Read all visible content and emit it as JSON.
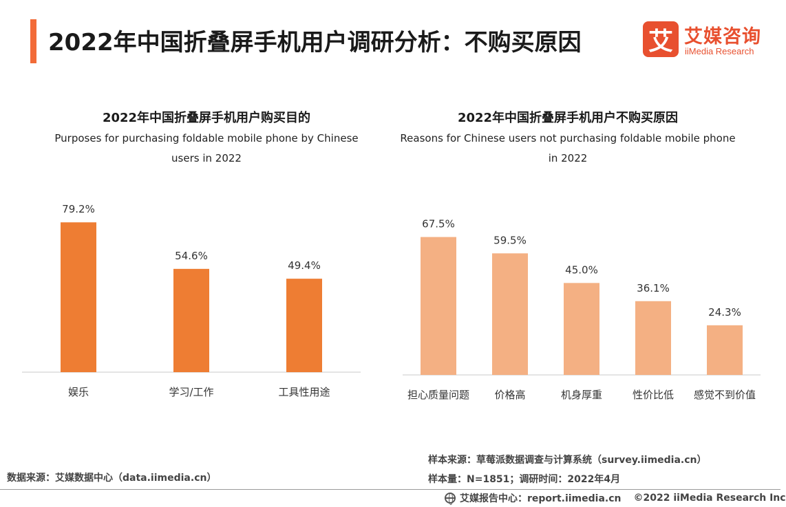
{
  "page": {
    "title": "2022年中国折叠屏手机用户调研分析：不购买原因",
    "accent_color": "#f26b38"
  },
  "logo": {
    "mark": "艾",
    "name_cn": "艾媒咨询",
    "name_en": "iiMedia Research",
    "color": "#e8502f"
  },
  "chart_data": [
    {
      "type": "bar",
      "title": "2022年中国折叠屏手机用户购买目的",
      "subtitle_lines": [
        "Purposes for purchasing foldable mobile phone by Chinese",
        "users in 2022"
      ],
      "categories": [
        "娱乐",
        "学习/工作",
        "工具性用途"
      ],
      "values": [
        79.2,
        54.6,
        49.4
      ],
      "value_labels": [
        "79.2%",
        "54.6%",
        "49.4%"
      ],
      "ylim": [
        0,
        100
      ],
      "color": "#ee7d33",
      "grid": false
    },
    {
      "type": "bar",
      "title": "2022年中国折叠屏手机用户不购买原因",
      "subtitle_lines": [
        "Reasons for Chinese users not purchasing foldable mobile phone",
        "in 2022"
      ],
      "categories": [
        "担心质量问题",
        "价格高",
        "机身厚重",
        "性价比低",
        "感觉不到价值"
      ],
      "values": [
        67.5,
        59.5,
        45.0,
        36.1,
        24.3
      ],
      "value_labels": [
        "67.5%",
        "59.5%",
        "45.0%",
        "36.1%",
        "24.3%"
      ],
      "ylim": [
        0,
        100
      ],
      "color": "#f4b083",
      "grid": false
    }
  ],
  "footer": {
    "data_source": "数据来源：艾媒数据中心（data.iimedia.cn）",
    "sample_source": "样本来源：草莓派数据调查与计算系统（survey.iimedia.cn）",
    "sample_size": "样本量：N=1851；调研时间：2022年4月",
    "report_center": "艾媒报告中心：report.iimedia.cn",
    "copyright": "©2022 iiMedia Research Inc"
  }
}
